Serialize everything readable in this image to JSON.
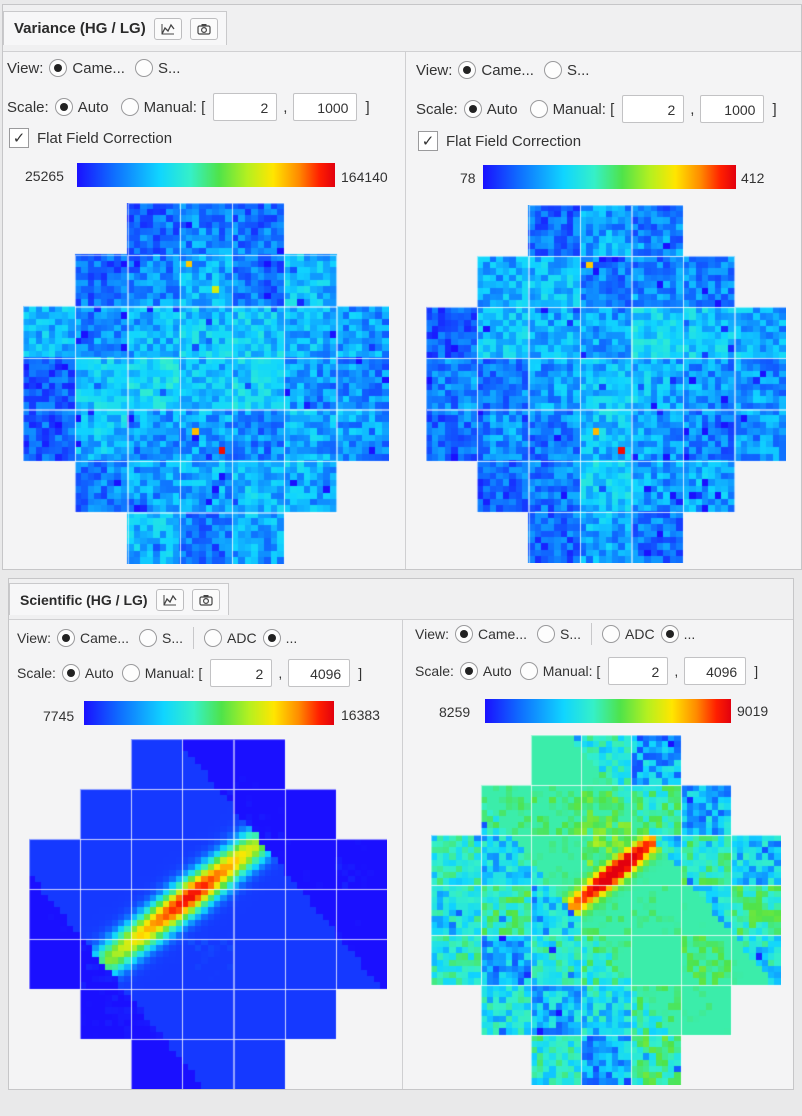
{
  "variance": {
    "title": "Variance (HG / LG)",
    "panels": [
      {
        "view_label": "View:",
        "view_opt1": "Came...",
        "view_opt2": "S...",
        "scale_label": "Scale:",
        "auto_label": "Auto",
        "manual_label": "Manual: [",
        "manual_min": "2",
        "comma": ",",
        "manual_max": "1000",
        "bracket_close": "]",
        "ffc_label": "Flat Field Correction",
        "cbar_min": "25265",
        "cbar_max": "164140"
      },
      {
        "view_label": "View:",
        "view_opt1": "Came...",
        "view_opt2": "S...",
        "scale_label": "Scale:",
        "auto_label": "Auto",
        "manual_label": "Manual: [",
        "manual_min": "2",
        "comma": ",",
        "manual_max": "1000",
        "bracket_close": "]",
        "ffc_label": "Flat Field Correction",
        "cbar_min": "78",
        "cbar_max": "412"
      }
    ]
  },
  "scientific": {
    "title": "Scientific (HG / LG)",
    "panels": [
      {
        "view_label": "View:",
        "view_opt1": "Came...",
        "view_opt2": "S...",
        "view_opt3": "ADC",
        "view_opt4": "...",
        "scale_label": "Scale:",
        "auto_label": "Auto",
        "manual_label": "Manual: [",
        "manual_min": "2",
        "comma": ",",
        "manual_max": "4096",
        "bracket_close": "]",
        "cbar_min": "7745",
        "cbar_max": "16383"
      },
      {
        "view_label": "View:",
        "view_opt1": "Came...",
        "view_opt2": "S...",
        "view_opt3": "ADC",
        "view_opt4": "...",
        "scale_label": "Scale:",
        "auto_label": "Auto",
        "manual_label": "Manual: [",
        "manual_min": "2",
        "comma": ",",
        "manual_max": "4096",
        "bracket_close": "]",
        "cbar_min": "8259",
        "cbar_max": "9019"
      }
    ]
  },
  "icons": {
    "plot": "line-chart-icon",
    "snapshot": "camera-icon"
  },
  "colormap": [
    "#1a10ff",
    "#0f6cff",
    "#10d5ff",
    "#35f0c8",
    "#4fe34a",
    "#b4f020",
    "#ffe600",
    "#ff8a00",
    "#ff1f00",
    "#e2000e"
  ]
}
